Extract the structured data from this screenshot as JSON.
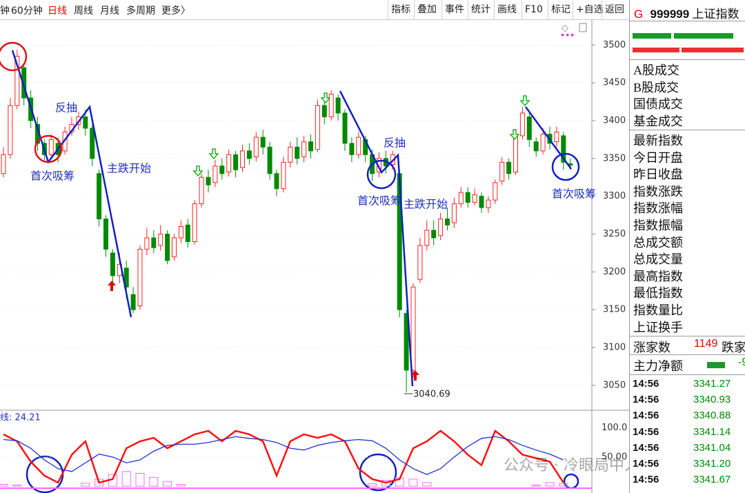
{
  "toolbar": {
    "periods": [
      "钟",
      "60分钟",
      "日线",
      "周线",
      "月线",
      "多周期",
      "更多〉"
    ],
    "tools": [
      "指标",
      "叠加",
      "事件",
      "统计",
      "画线",
      "F10",
      "标记",
      "+自选",
      "返回"
    ]
  },
  "chart": {
    "type": "candlestick",
    "up_color": "#ff2020",
    "down_color": "#008a00",
    "grid": true,
    "ylim": [
      3017,
      3534
    ],
    "yticks": [
      3050,
      3100,
      3150,
      3200,
      3250,
      3300,
      3350,
      3400,
      3450,
      3500
    ],
    "candles": [
      [
        3330,
        3355,
        3365,
        3325
      ],
      [
        3355,
        3420,
        3430,
        3350
      ],
      [
        3420,
        3485,
        3494,
        3415
      ],
      [
        3470,
        3430,
        3475,
        3420
      ],
      [
        3430,
        3400,
        3440,
        3390
      ],
      [
        3395,
        3370,
        3405,
        3360
      ],
      [
        3370,
        3355,
        3375,
        3348
      ],
      [
        3355,
        3375,
        3382,
        3350
      ],
      [
        3370,
        3355,
        3378,
        3345
      ],
      [
        3360,
        3385,
        3392,
        3355
      ],
      [
        3385,
        3395,
        3405,
        3380
      ],
      [
        3395,
        3405,
        3412,
        3388
      ],
      [
        3405,
        3390,
        3415,
        3380
      ],
      [
        3390,
        3350,
        3395,
        3340
      ],
      [
        3330,
        3270,
        3335,
        3260
      ],
      [
        3270,
        3230,
        3275,
        3220
      ],
      [
        3225,
        3195,
        3230,
        3180
      ],
      [
        3195,
        3210,
        3225,
        3185
      ],
      [
        3205,
        3180,
        3215,
        3165
      ],
      [
        3170,
        3150,
        3180,
        3145
      ],
      [
        3155,
        3230,
        3235,
        3150
      ],
      [
        3230,
        3245,
        3258,
        3222
      ],
      [
        3245,
        3232,
        3255,
        3225
      ],
      [
        3235,
        3250,
        3262,
        3228
      ],
      [
        3250,
        3215,
        3255,
        3210
      ],
      [
        3220,
        3245,
        3250,
        3215
      ],
      [
        3245,
        3260,
        3268,
        3238
      ],
      [
        3262,
        3240,
        3270,
        3232
      ],
      [
        3240,
        3290,
        3295,
        3236
      ],
      [
        3290,
        3325,
        3330,
        3285
      ],
      [
        3325,
        3315,
        3335,
        3305
      ],
      [
        3318,
        3340,
        3348,
        3312
      ],
      [
        3340,
        3330,
        3350,
        3322
      ],
      [
        3332,
        3355,
        3362,
        3326
      ],
      [
        3355,
        3335,
        3360,
        3325
      ],
      [
        3338,
        3360,
        3368,
        3332
      ],
      [
        3360,
        3350,
        3370,
        3342
      ],
      [
        3352,
        3378,
        3385,
        3346
      ],
      [
        3378,
        3365,
        3388,
        3355
      ],
      [
        3365,
        3330,
        3372,
        3322
      ],
      [
        3330,
        3310,
        3335,
        3300
      ],
      [
        3310,
        3345,
        3352,
        3305
      ],
      [
        3345,
        3365,
        3372,
        3338
      ],
      [
        3365,
        3350,
        3378,
        3342
      ],
      [
        3352,
        3372,
        3380,
        3345
      ],
      [
        3372,
        3360,
        3382,
        3350
      ],
      [
        3362,
        3420,
        3428,
        3358
      ],
      [
        3420,
        3405,
        3430,
        3395
      ],
      [
        3405,
        3435,
        3440,
        3400
      ],
      [
        3430,
        3410,
        3435,
        3400
      ],
      [
        3410,
        3370,
        3415,
        3360
      ],
      [
        3370,
        3355,
        3378,
        3345
      ],
      [
        3355,
        3378,
        3385,
        3350
      ],
      [
        3375,
        3355,
        3380,
        3345
      ],
      [
        3355,
        3330,
        3362,
        3320
      ],
      [
        3332,
        3350,
        3358,
        3325
      ],
      [
        3350,
        3340,
        3360,
        3330
      ],
      [
        3342,
        3355,
        3360,
        3335
      ],
      [
        3330,
        3150,
        3335,
        3140
      ],
      [
        3145,
        3070,
        3150,
        3040.69
      ],
      [
        3070,
        3180,
        3185,
        3060
      ],
      [
        3190,
        3235,
        3245,
        3185
      ],
      [
        3235,
        3255,
        3268,
        3228
      ],
      [
        3255,
        3245,
        3268,
        3235
      ],
      [
        3248,
        3270,
        3278,
        3242
      ],
      [
        3270,
        3262,
        3285,
        3255
      ],
      [
        3265,
        3290,
        3298,
        3258
      ],
      [
        3290,
        3305,
        3312,
        3285
      ],
      [
        3305,
        3292,
        3312,
        3285
      ],
      [
        3292,
        3302,
        3310,
        3288
      ],
      [
        3300,
        3285,
        3305,
        3278
      ],
      [
        3285,
        3295,
        3300,
        3278
      ],
      [
        3295,
        3318,
        3322,
        3290
      ],
      [
        3320,
        3345,
        3352,
        3315
      ],
      [
        3345,
        3330,
        3350,
        3322
      ],
      [
        3332,
        3380,
        3388,
        3328
      ],
      [
        3380,
        3410,
        3418,
        3375
      ],
      [
        3405,
        3375,
        3410,
        3365
      ],
      [
        3372,
        3360,
        3378,
        3352
      ],
      [
        3360,
        3382,
        3390,
        3355
      ],
      [
        3382,
        3370,
        3392,
        3362
      ],
      [
        3372,
        3385,
        3392,
        3365
      ],
      [
        3380,
        3345,
        3385,
        3335
      ],
      [
        3343,
        3341,
        3350,
        3335
      ]
    ],
    "low_label": "3040.69",
    "annotations": [
      "反抽",
      "首次吸筹",
      "主跌开始",
      "首次吸筹",
      "反抽",
      "主跌开始",
      "首次吸筹"
    ]
  },
  "indicator": {
    "label": "线: 24.21",
    "ylim": [
      0,
      128
    ],
    "yticks": [
      {
        "value": 50,
        "label": "50.00"
      },
      {
        "value": 100,
        "label": "100.0"
      }
    ],
    "series": [
      {
        "color": "#ff1010",
        "values": [
          89,
          77,
          42,
          18,
          6,
          54,
          77,
          6,
          12,
          65,
          77,
          83,
          65,
          77,
          89,
          95,
          77,
          95,
          89,
          77,
          18,
          77,
          89,
          83,
          89,
          77,
          30,
          12,
          6,
          12,
          65,
          77,
          95,
          77,
          54,
          36,
          95,
          77,
          54,
          48,
          42,
          6
        ]
      },
      {
        "color": "#2030d0",
        "values": [
          80,
          78,
          65,
          45,
          30,
          25,
          40,
          55,
          50,
          40,
          45,
          60,
          70,
          72,
          72,
          75,
          80,
          85,
          82,
          80,
          75,
          65,
          62,
          70,
          75,
          78,
          80,
          78,
          65,
          45,
          30,
          20,
          30,
          50,
          68,
          82,
          85,
          80,
          70,
          62,
          55,
          45
        ]
      }
    ],
    "histogram": {
      "color": "#ff66ff",
      "values": [
        3,
        2,
        0,
        0,
        0,
        0,
        5,
        12,
        20,
        25,
        22,
        15,
        8,
        3,
        0,
        0,
        0,
        0,
        0,
        0,
        0,
        0,
        0,
        0,
        0,
        0,
        0,
        4,
        10,
        14,
        12,
        6,
        0,
        0,
        0,
        0,
        0,
        0,
        0,
        2,
        6,
        4
      ]
    }
  },
  "panel": {
    "code_prefix": "G",
    "code": "999999",
    "name": "上证指数",
    "volume_rows": [
      "A股成交",
      "B股成交",
      "国债成交",
      "基金成交"
    ],
    "index_rows": [
      "最新指数",
      "今日开盘",
      "昨日收盘",
      "指数涨跌",
      "指数涨幅",
      "指数振幅",
      "总成交额",
      "总成交量",
      "最高指数",
      "最低指数",
      "指数量比",
      "上证换手"
    ],
    "rise_label": "涨家数",
    "rise_count": 1149,
    "fall_label": "跌家",
    "net_label": "主力净额",
    "net_value": "-9",
    "ticks": [
      [
        "14:56",
        "3341.27"
      ],
      [
        "14:56",
        "3340.93"
      ],
      [
        "14:56",
        "3340.88"
      ],
      [
        "14:56",
        "3341.14"
      ],
      [
        "14:56",
        "3341.04"
      ],
      [
        "14:56",
        "3341.20"
      ],
      [
        "14:56",
        "3341.67"
      ]
    ]
  },
  "watermark": "公众号 · 冷眼局中人"
}
